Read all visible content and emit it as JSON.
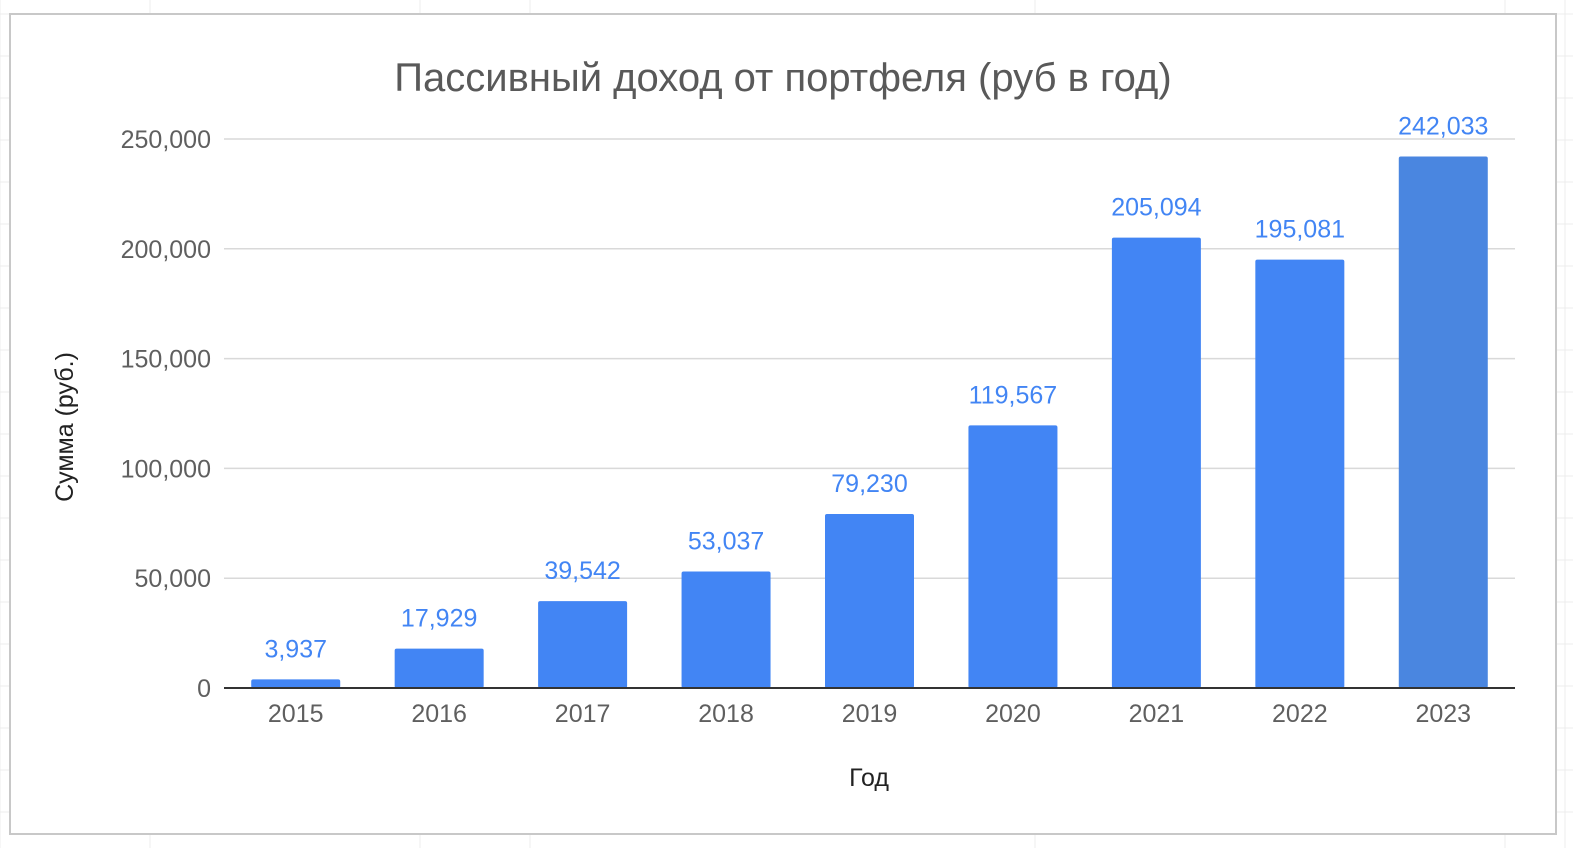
{
  "chart_data": {
    "type": "bar",
    "title": "Пассивный доход от портфеля (руб в год)",
    "xlabel": "Год",
    "ylabel": "Сумма (руб.)",
    "categories": [
      "2015",
      "2016",
      "2017",
      "2018",
      "2019",
      "2020",
      "2021",
      "2022",
      "2023"
    ],
    "values": [
      3937,
      17929,
      39542,
      53037,
      79230,
      119567,
      205094,
      195081,
      242033
    ],
    "data_labels": [
      "3,937",
      "17,929",
      "39,542",
      "53,037",
      "79,230",
      "119,567",
      "205,094",
      "195,081",
      "242,033"
    ],
    "ylim": [
      0,
      250000
    ],
    "yticks": [
      0,
      50000,
      100000,
      150000,
      200000,
      250000
    ],
    "ytick_labels": [
      "0",
      "50,000",
      "100,000",
      "150,000",
      "200,000",
      "250,000"
    ],
    "grid": true,
    "legend": "none",
    "colors": {
      "bar": "#4285f4",
      "bar_last": "#4a86e0",
      "data_label": "#4285f4",
      "gridline": "#d9d9d9",
      "baseline": "#333333"
    }
  }
}
